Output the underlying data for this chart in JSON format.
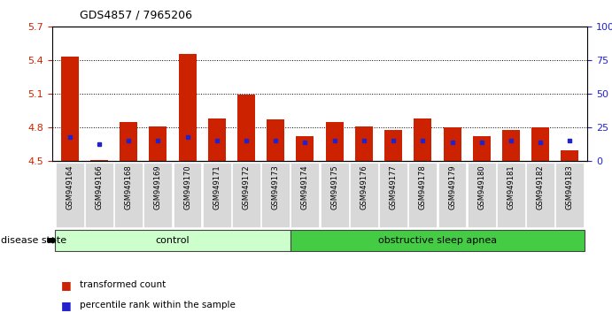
{
  "title": "GDS4857 / 7965206",
  "samples": [
    "GSM949164",
    "GSM949166",
    "GSM949168",
    "GSM949169",
    "GSM949170",
    "GSM949171",
    "GSM949172",
    "GSM949173",
    "GSM949174",
    "GSM949175",
    "GSM949176",
    "GSM949177",
    "GSM949178",
    "GSM949179",
    "GSM949180",
    "GSM949181",
    "GSM949182",
    "GSM949183"
  ],
  "red_values": [
    5.43,
    4.51,
    4.85,
    4.81,
    5.46,
    4.88,
    5.09,
    4.87,
    4.72,
    4.85,
    4.81,
    4.78,
    4.88,
    4.8,
    4.72,
    4.78,
    4.8,
    4.6
  ],
  "blue_percentiles": [
    18,
    13,
    15,
    15,
    18,
    15,
    15,
    15,
    14,
    15,
    15,
    15,
    15,
    14,
    14,
    15,
    14,
    15
  ],
  "blue_dot_only": [
    false,
    true,
    false,
    false,
    false,
    false,
    false,
    false,
    false,
    false,
    false,
    false,
    false,
    false,
    false,
    false,
    false,
    false
  ],
  "y_min": 4.5,
  "y_max": 5.7,
  "y_ticks": [
    4.5,
    4.8,
    5.1,
    5.4,
    5.7
  ],
  "y_tick_labels": [
    "4.5",
    "4.8",
    "5.1",
    "5.4",
    "5.7"
  ],
  "right_y_ticks": [
    0,
    25,
    50,
    75,
    100
  ],
  "right_y_tick_labels": [
    "0",
    "25",
    "50",
    "75",
    "100%"
  ],
  "control_count": 8,
  "control_label": "control",
  "disease_label": "obstructive sleep apnea",
  "disease_state_label": "disease state",
  "legend_red": "transformed count",
  "legend_blue": "percentile rank within the sample",
  "bar_color": "#cc2200",
  "dot_color": "#2222cc",
  "control_bg": "#ccffcc",
  "disease_bg": "#44cc44",
  "bar_width": 0.6
}
